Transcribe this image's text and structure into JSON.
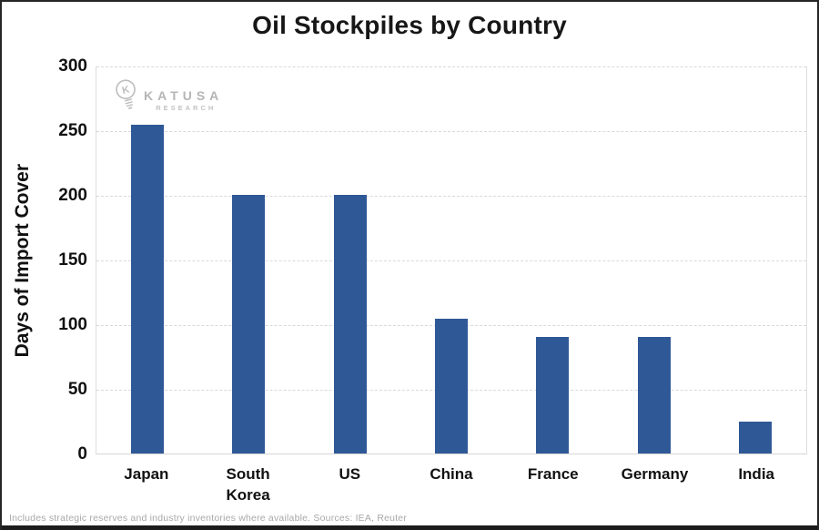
{
  "page": {
    "footnote": "Includes strategic reserves and industry inventories where available. Sources: IEA, Reuter",
    "watermark": {
      "brand": "KATUSA",
      "sub": "RESEARCH"
    }
  },
  "chart_data": {
    "type": "bar",
    "title": "Oil Stockpiles by Country",
    "categories": [
      "Japan",
      "South Korea",
      "US",
      "China",
      "France",
      "Germany",
      "India"
    ],
    "values": [
      254,
      200,
      200,
      104,
      90,
      90,
      25
    ],
    "xlabel": "",
    "ylabel": "Days of Import Cover",
    "ylim": [
      0,
      300
    ],
    "yticks": [
      0,
      50,
      100,
      150,
      200,
      250,
      300
    ],
    "grid": "horizontal-dashed",
    "legend_position": "none",
    "bar_color": "#2F5896"
  },
  "colors": {
    "bar": "#2F5896",
    "gridline": "#d9d9d9",
    "title_text": "#171717",
    "watermark": "#b5b5b5",
    "footnote_text": "#a8a8a8",
    "frame": "#262626"
  }
}
